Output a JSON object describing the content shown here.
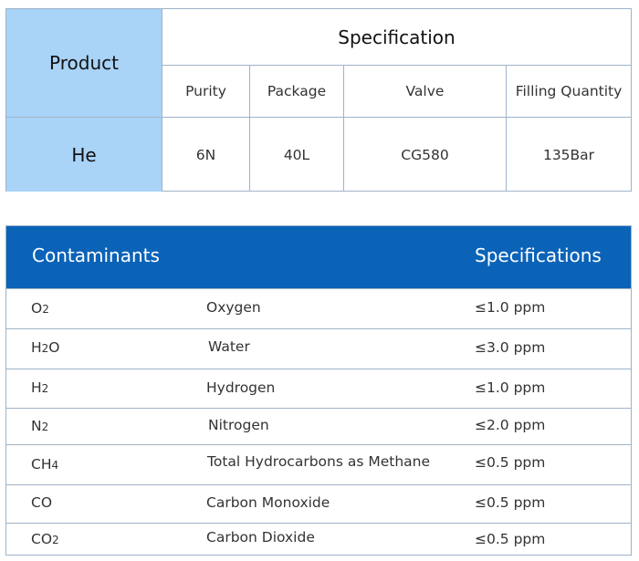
{
  "spec_table": {
    "product_header": "Product",
    "specification_header": "Specification",
    "columns": [
      "Purity",
      "Package",
      "Valve",
      "Filling Quantity"
    ],
    "product": "He",
    "values": [
      "6N",
      "40L",
      "CG580",
      "135Bar"
    ]
  },
  "contaminants_table": {
    "header_contaminants": "Contaminants",
    "header_specifications": "Specifications",
    "header_color": "#0b63b8",
    "rows": [
      {
        "formula": "O2",
        "name": "Oxygen",
        "spec": "≤1.0 ppm"
      },
      {
        "formula": "H2O",
        "name": "Water",
        "spec": "≤3.0 ppm"
      },
      {
        "formula": "H2",
        "name": "Hydrogen",
        "spec": "≤1.0 ppm"
      },
      {
        "formula": "N2",
        "name": "Nitrogen",
        "spec": "≤2.0 ppm"
      },
      {
        "formula": "CH4",
        "name": "Total Hydrocarbons as Methane",
        "spec": "≤0.5 ppm"
      },
      {
        "formula": "CO",
        "name": "Carbon Monoxide",
        "spec": "≤0.5 ppm"
      },
      {
        "formula": "CO2",
        "name": "Carbon Dioxide",
        "spec": "≤0.5 ppm"
      }
    ]
  },
  "colors": {
    "product_column_bg": "#a9d3f7",
    "border": "#9fb3c8"
  }
}
